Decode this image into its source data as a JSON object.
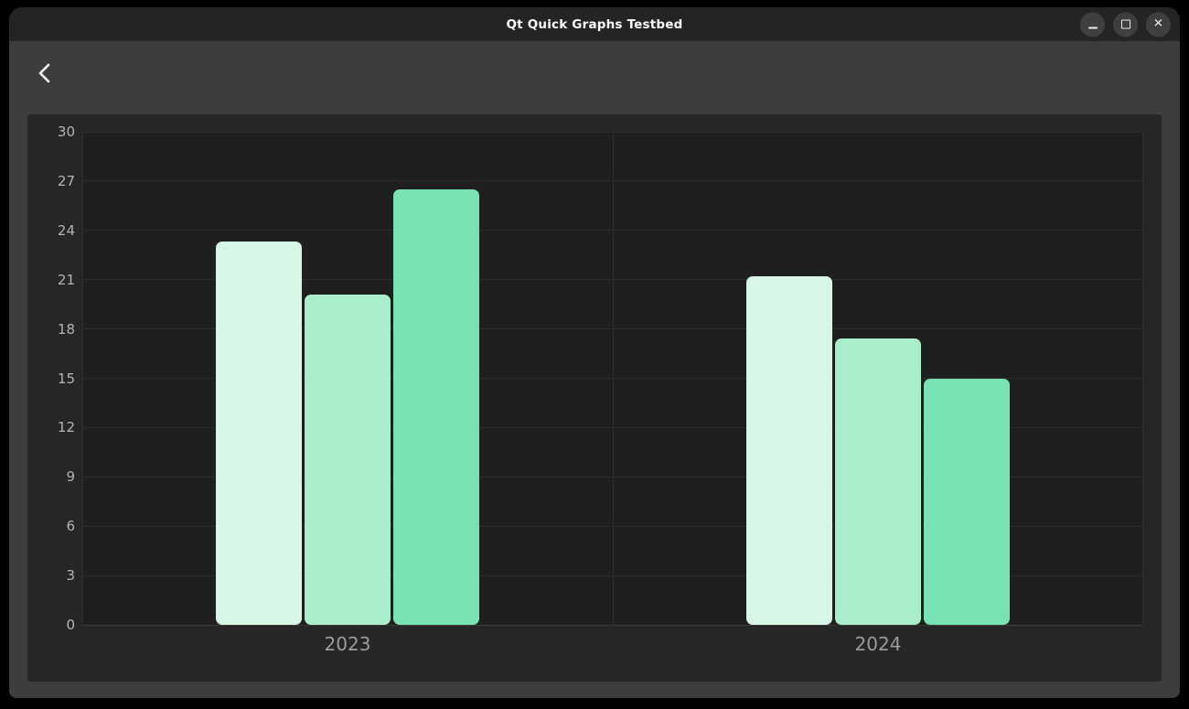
{
  "window": {
    "title": "Qt Quick Graphs Testbed",
    "controls": {
      "minimize_icon": "minimize-dash",
      "maximize_icon": "maximize-square",
      "close_glyph": "✕"
    }
  },
  "toolbar": {
    "back_icon": "chevron-left"
  },
  "chart_data": {
    "type": "bar",
    "title": "",
    "xlabel": "",
    "ylabel": "",
    "categories": [
      "2023",
      "2024"
    ],
    "series": [
      {
        "name": "",
        "color": "#d7f6e6",
        "values": [
          23.3,
          21.2
        ]
      },
      {
        "name": "",
        "color": "#a9edcb",
        "values": [
          20.1,
          17.4
        ]
      },
      {
        "name": "",
        "color": "#79e2b2",
        "values": [
          26.5,
          15.0
        ]
      }
    ],
    "ylim": [
      0,
      30
    ],
    "yticks": [
      0,
      3,
      6,
      9,
      12,
      15,
      18,
      21,
      24,
      27,
      30
    ],
    "grid": true,
    "legend": "none"
  },
  "layout_colors": {
    "window_bg": "#3d3d3d",
    "titlebar_bg": "#242424",
    "panel_bg": "#262626",
    "plot_bg": "#1f1f1f",
    "gridline": "#2d2d2d",
    "axis_line": "#3a3a3a",
    "tick_label": "#b4b4b4",
    "category_label": "#9b9b9b"
  }
}
